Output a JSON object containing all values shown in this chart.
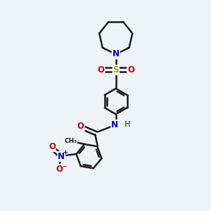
{
  "bg_color": "#eef3f8",
  "line_color": "#1a1a1a",
  "bond_width": 1.8,
  "atom_colors": {
    "N": "#0000cc",
    "O": "#cc0000",
    "S": "#aaaa00",
    "H": "#4a8888",
    "C": "#1a1a1a",
    "N_plus": "#0000cc",
    "O_minus": "#cc0000"
  },
  "font_size": 8.5
}
